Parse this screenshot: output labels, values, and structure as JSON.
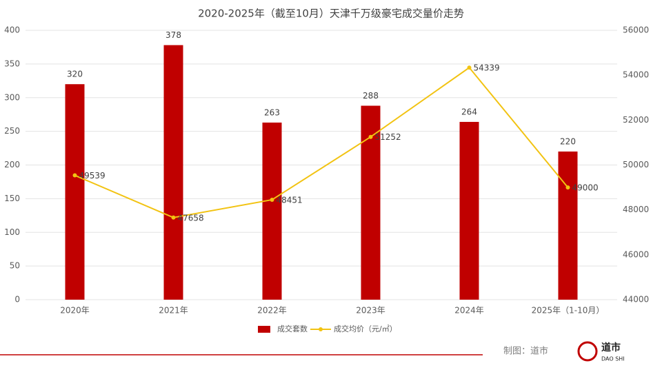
{
  "chart_data": {
    "type": "bar_line",
    "title": "2020-2025年（截至10月）天津千万级豪宅成交量价走势",
    "categories": [
      "2020年",
      "2021年",
      "2022年",
      "2023年",
      "2024年",
      "2025年（1-10月）"
    ],
    "series": [
      {
        "name": "成交套数",
        "color": "#c00000",
        "type": "bar",
        "values": [
          320,
          378,
          263,
          288,
          264,
          220
        ]
      },
      {
        "name": "成交均价（元/㎡）",
        "color": "#f2c312",
        "type": "line",
        "axis": "y2",
        "values": [
          49539,
          47658,
          48451,
          51252,
          54339,
          49000
        ]
      }
    ],
    "ylim": [
      0,
      400
    ],
    "yticks": [
      0,
      50,
      100,
      150,
      200,
      250,
      300,
      350,
      400
    ],
    "y2lim": [
      44000,
      56000
    ],
    "y2ticks": [
      44000,
      46000,
      48000,
      50000,
      52000,
      54000,
      56000
    ],
    "grid": true,
    "legend": "bottom",
    "source": "制图：道市",
    "logo": {
      "name": "道市",
      "subtitle": "DAO SHI"
    }
  }
}
